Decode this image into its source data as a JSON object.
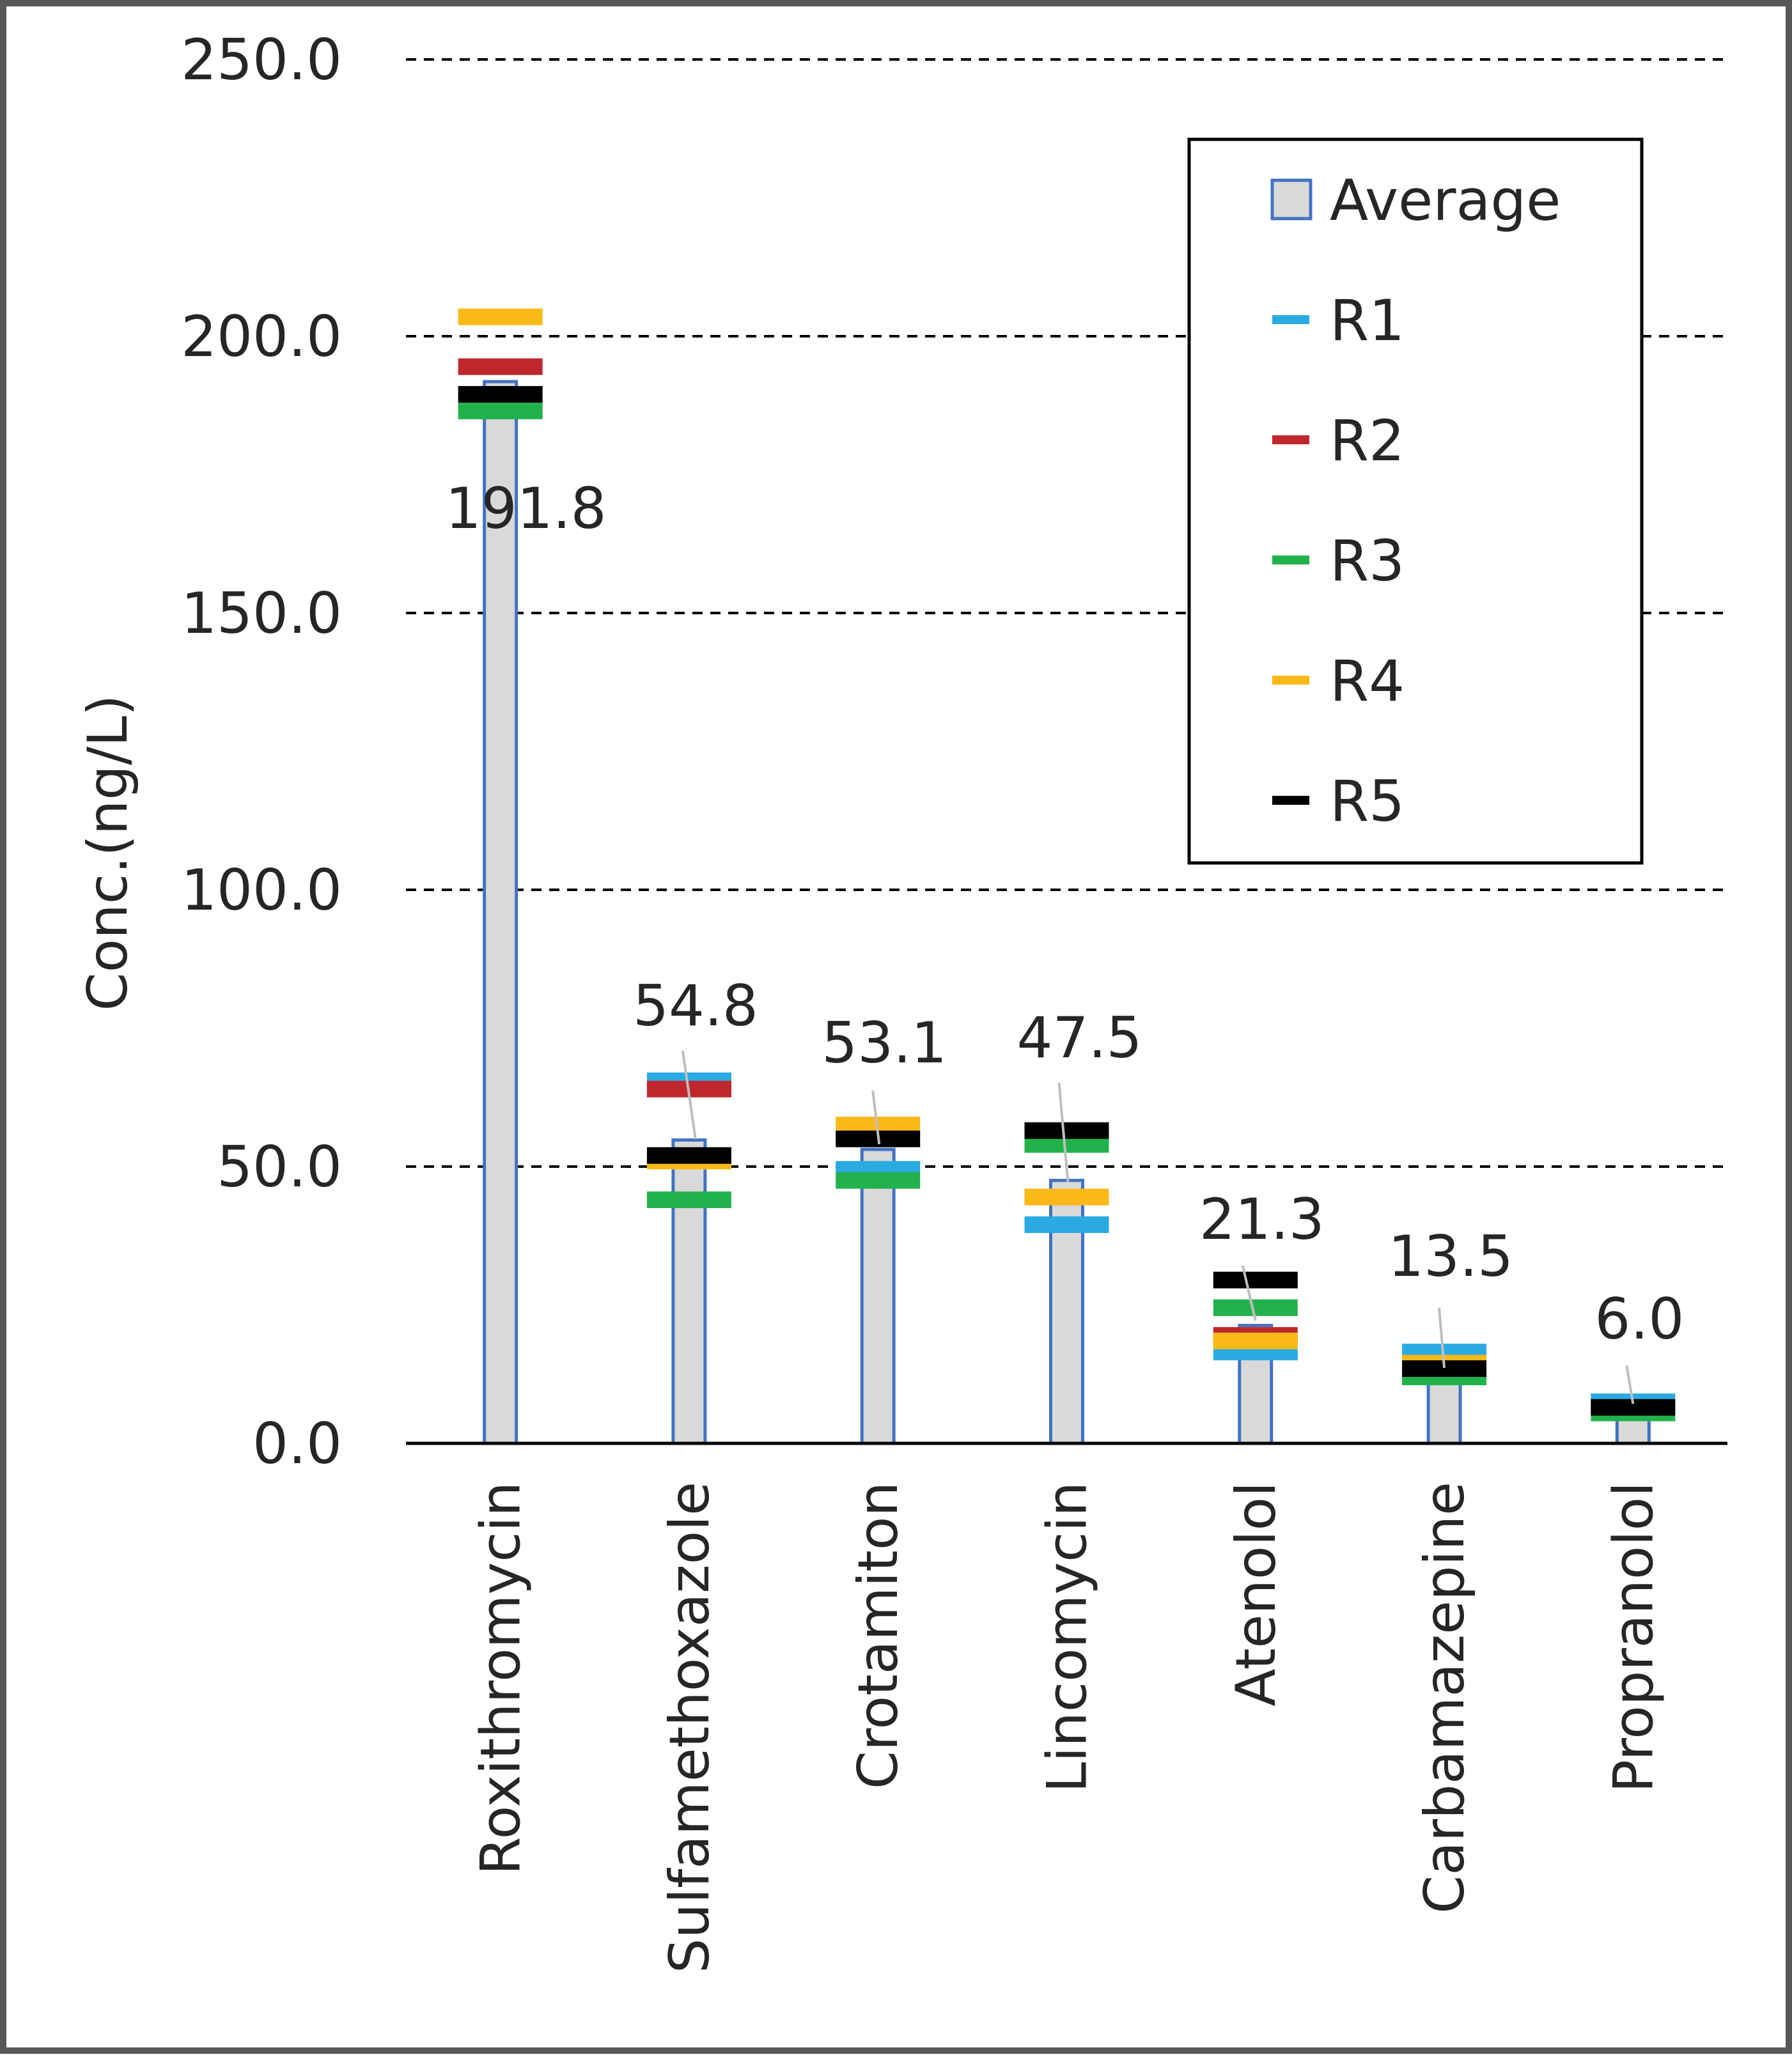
{
  "chart_data": {
    "type": "bar",
    "title": "",
    "xlabel": "",
    "ylabel": "Conc.(ng/L)",
    "ylim": [
      0,
      250
    ],
    "yticks": [
      "0.0",
      "50.0",
      "100.0",
      "150.0",
      "200.0",
      "250.0"
    ],
    "grid": "horizontal-dashed",
    "legend_position": "top-right",
    "categories": [
      "Roxithromycin",
      "Sulfamethoxazole",
      "Crotamiton",
      "Lincomycin",
      "Atenolol",
      "Carbamazepine",
      "Propranolol"
    ],
    "series": [
      {
        "name": "Average",
        "kind": "bar",
        "color": "#d9d9d9",
        "edge_color": "#4472c4",
        "values": [
          191.8,
          54.8,
          53.1,
          47.5,
          21.3,
          13.5,
          6.0
        ],
        "labels": [
          "191.8",
          "54.8",
          "53.1",
          "47.5",
          "21.3",
          "13.5",
          "6.0"
        ]
      },
      {
        "name": "R1",
        "kind": "marker",
        "color": "#29abe2",
        "values": [
          null,
          65.5,
          49.5,
          39.5,
          16.5,
          16.5,
          7.5
        ]
      },
      {
        "name": "R2",
        "kind": "marker",
        "color": "#c0272d",
        "values": [
          194.5,
          64.0,
          null,
          null,
          19.5,
          null,
          null
        ]
      },
      {
        "name": "R3",
        "kind": "marker",
        "color": "#22b24c",
        "values": [
          186.5,
          44.0,
          47.5,
          54.0,
          24.5,
          12.0,
          5.5
        ]
      },
      {
        "name": "R4",
        "kind": "marker",
        "color": "#fbb917",
        "values": [
          203.5,
          51.0,
          57.5,
          44.5,
          18.5,
          14.5,
          null
        ]
      },
      {
        "name": "R5",
        "kind": "marker",
        "color": "#000000",
        "values": [
          189.5,
          52.0,
          55.0,
          56.5,
          29.5,
          13.5,
          6.5
        ]
      }
    ]
  }
}
